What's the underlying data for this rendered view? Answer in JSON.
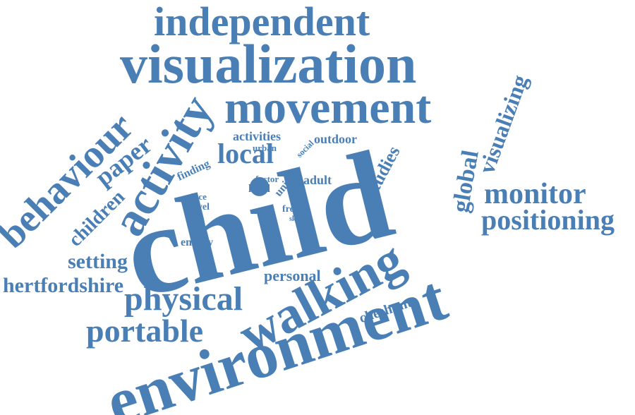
{
  "accent_color": "#4a7fb6",
  "background_color": "#ffffff",
  "words": [
    "independent",
    "visualization",
    "movement",
    "activity",
    "behaviour",
    "visualizing",
    "paper",
    "activities",
    "outdoor",
    "urban",
    "social",
    "local",
    "finding",
    "child",
    "studies",
    "global",
    "monitor",
    "positioning",
    "adult",
    "factor",
    "level",
    "unit",
    "place",
    "travel",
    "free",
    "skill",
    "children",
    "energy",
    "setting",
    "hertfordshire",
    "personal",
    "physical",
    "walking",
    "cheshunt",
    "portable",
    "environment"
  ]
}
